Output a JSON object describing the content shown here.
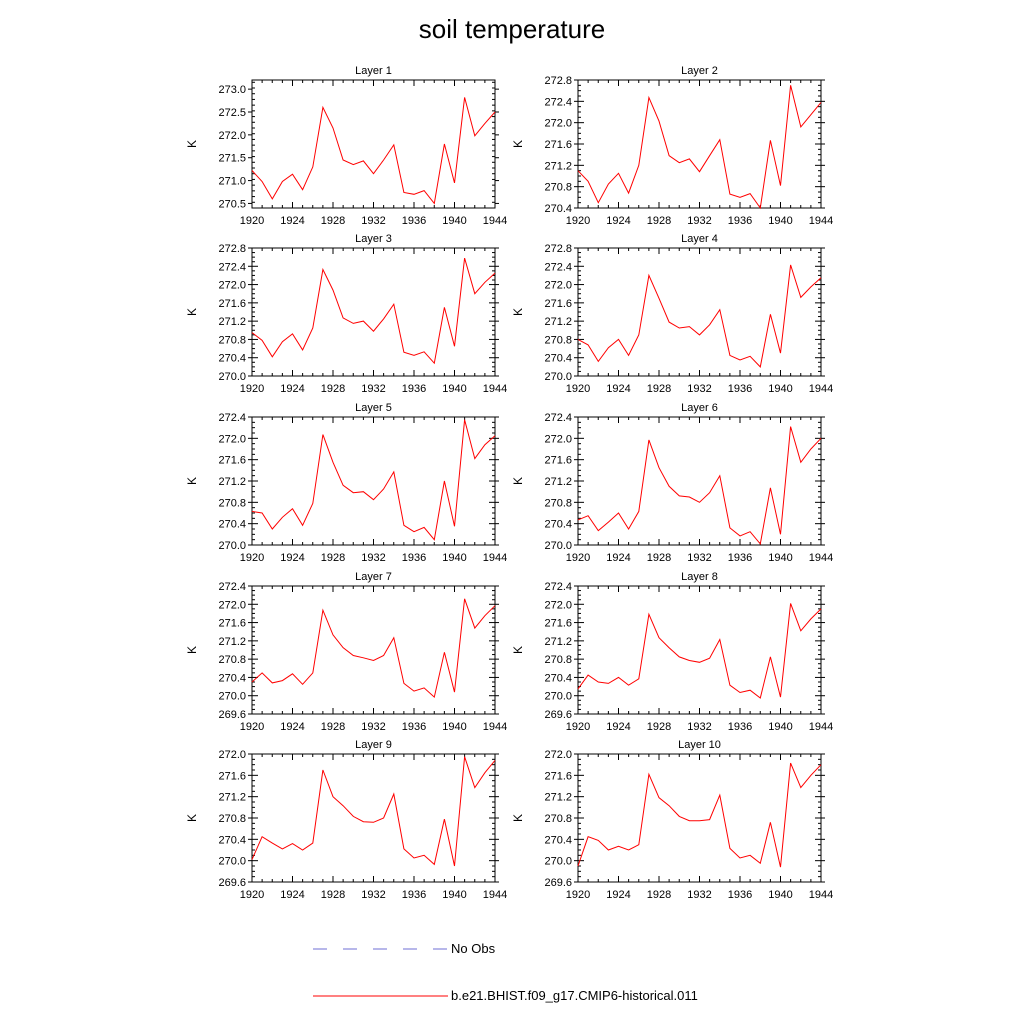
{
  "title": "soil temperature",
  "colors": {
    "model": "#ff0000",
    "obs": "#6f6fd6",
    "axis": "#000000"
  },
  "legend": {
    "obs_label": "No Obs",
    "model_label": "b.e21.BHIST.f09_g17.CMIP6-historical.011"
  },
  "chart_data": [
    {
      "type": "line",
      "title": "Layer 1",
      "ylabel": "K",
      "xlim": [
        1920,
        1944
      ],
      "ylim": [
        270.4,
        273.2
      ],
      "yticks": [
        "273.0",
        "272.5",
        "272.0",
        "271.5",
        "271.0",
        "270.5"
      ],
      "xticks": [
        "1920",
        "1924",
        "1928",
        "1932",
        "1936",
        "1940",
        "1944"
      ],
      "x": [
        1920,
        1921,
        1922,
        1923,
        1924,
        1925,
        1926,
        1927,
        1928,
        1929,
        1930,
        1931,
        1932,
        1933,
        1934,
        1935,
        1936,
        1937,
        1938,
        1939,
        1940,
        1941,
        1942,
        1943,
        1944
      ],
      "series": [
        {
          "name": "b.e21.BHIST.f09_g17.CMIP6-historical.011",
          "values": [
            271.22,
            270.98,
            270.6,
            270.98,
            271.14,
            270.8,
            271.3,
            272.6,
            272.15,
            271.45,
            271.35,
            271.43,
            271.15,
            271.45,
            271.78,
            270.74,
            270.7,
            270.78,
            270.5,
            271.8,
            270.95,
            272.82,
            271.98,
            272.25,
            272.5
          ]
        }
      ]
    },
    {
      "type": "line",
      "title": "Layer 2",
      "ylabel": "K",
      "xlim": [
        1920,
        1944
      ],
      "ylim": [
        270.4,
        272.8
      ],
      "yticks": [
        "272.8",
        "272.4",
        "272.0",
        "271.6",
        "271.2",
        "270.8",
        "270.4"
      ],
      "xticks": [
        "1920",
        "1924",
        "1928",
        "1932",
        "1936",
        "1940",
        "1944"
      ],
      "x": [
        1920,
        1921,
        1922,
        1923,
        1924,
        1925,
        1926,
        1927,
        1928,
        1929,
        1930,
        1931,
        1932,
        1933,
        1934,
        1935,
        1936,
        1937,
        1938,
        1939,
        1940,
        1941,
        1942,
        1943,
        1944
      ],
      "series": [
        {
          "name": "b.e21.BHIST.f09_g17.CMIP6-historical.011",
          "values": [
            271.1,
            270.9,
            270.5,
            270.85,
            271.05,
            270.68,
            271.2,
            272.47,
            272.03,
            271.38,
            271.25,
            271.32,
            271.08,
            271.38,
            271.68,
            270.66,
            270.6,
            270.67,
            270.4,
            271.67,
            270.82,
            272.7,
            271.92,
            272.15,
            272.38
          ]
        }
      ]
    },
    {
      "type": "line",
      "title": "Layer 3",
      "ylabel": "K",
      "xlim": [
        1920,
        1944
      ],
      "ylim": [
        270.0,
        272.8
      ],
      "yticks": [
        "272.8",
        "272.4",
        "272.0",
        "271.6",
        "271.2",
        "270.8",
        "270.4",
        "270.0"
      ],
      "xticks": [
        "1920",
        "1924",
        "1928",
        "1932",
        "1936",
        "1940",
        "1944"
      ],
      "x": [
        1920,
        1921,
        1922,
        1923,
        1924,
        1925,
        1926,
        1927,
        1928,
        1929,
        1930,
        1931,
        1932,
        1933,
        1934,
        1935,
        1936,
        1937,
        1938,
        1939,
        1940,
        1941,
        1942,
        1943,
        1944
      ],
      "series": [
        {
          "name": "b.e21.BHIST.f09_g17.CMIP6-historical.011",
          "values": [
            270.95,
            270.78,
            270.42,
            270.75,
            270.92,
            270.57,
            271.05,
            272.33,
            271.88,
            271.27,
            271.15,
            271.2,
            270.98,
            271.25,
            271.57,
            270.52,
            270.45,
            270.53,
            270.28,
            271.5,
            270.65,
            272.58,
            271.8,
            272.05,
            272.25
          ]
        }
      ]
    },
    {
      "type": "line",
      "title": "Layer 4",
      "ylabel": "K",
      "xlim": [
        1920,
        1944
      ],
      "ylim": [
        270.0,
        272.8
      ],
      "yticks": [
        "272.8",
        "272.4",
        "272.0",
        "271.6",
        "271.2",
        "270.8",
        "270.4",
        "270.0"
      ],
      "xticks": [
        "1920",
        "1924",
        "1928",
        "1932",
        "1936",
        "1940",
        "1944"
      ],
      "x": [
        1920,
        1921,
        1922,
        1923,
        1924,
        1925,
        1926,
        1927,
        1928,
        1929,
        1930,
        1931,
        1932,
        1933,
        1934,
        1935,
        1936,
        1937,
        1938,
        1939,
        1940,
        1941,
        1942,
        1943,
        1944
      ],
      "series": [
        {
          "name": "b.e21.BHIST.f09_g17.CMIP6-historical.011",
          "values": [
            270.8,
            270.68,
            270.32,
            270.62,
            270.8,
            270.45,
            270.9,
            272.2,
            271.7,
            271.18,
            271.05,
            271.08,
            270.9,
            271.12,
            271.45,
            270.45,
            270.35,
            270.43,
            270.2,
            271.35,
            270.5,
            272.43,
            271.72,
            271.95,
            272.15
          ]
        }
      ]
    },
    {
      "type": "line",
      "title": "Layer 5",
      "ylabel": "K",
      "xlim": [
        1920,
        1944
      ],
      "ylim": [
        270.0,
        272.4
      ],
      "yticks": [
        "272.4",
        "272.0",
        "271.6",
        "271.2",
        "270.8",
        "270.4",
        "270.0"
      ],
      "xticks": [
        "1920",
        "1924",
        "1928",
        "1932",
        "1936",
        "1940",
        "1944"
      ],
      "x": [
        1920,
        1921,
        1922,
        1923,
        1924,
        1925,
        1926,
        1927,
        1928,
        1929,
        1930,
        1931,
        1932,
        1933,
        1934,
        1935,
        1936,
        1937,
        1938,
        1939,
        1940,
        1941,
        1942,
        1943,
        1944
      ],
      "series": [
        {
          "name": "b.e21.BHIST.f09_g17.CMIP6-historical.011",
          "values": [
            270.63,
            270.6,
            270.3,
            270.52,
            270.68,
            270.37,
            270.78,
            272.07,
            271.55,
            271.12,
            270.98,
            271.0,
            270.85,
            271.05,
            271.37,
            270.37,
            270.25,
            270.33,
            270.1,
            271.2,
            270.35,
            272.35,
            271.62,
            271.88,
            272.05
          ]
        }
      ]
    },
    {
      "type": "line",
      "title": "Layer 6",
      "ylabel": "K",
      "xlim": [
        1920,
        1944
      ],
      "ylim": [
        270.0,
        272.4
      ],
      "yticks": [
        "272.4",
        "272.0",
        "271.6",
        "271.2",
        "270.8",
        "270.4",
        "270.0"
      ],
      "xticks": [
        "1920",
        "1924",
        "1928",
        "1932",
        "1936",
        "1940",
        "1944"
      ],
      "x": [
        1920,
        1921,
        1922,
        1923,
        1924,
        1925,
        1926,
        1927,
        1928,
        1929,
        1930,
        1931,
        1932,
        1933,
        1934,
        1935,
        1936,
        1937,
        1938,
        1939,
        1940,
        1941,
        1942,
        1943,
        1944
      ],
      "series": [
        {
          "name": "b.e21.BHIST.f09_g17.CMIP6-historical.011",
          "values": [
            270.47,
            270.55,
            270.27,
            270.43,
            270.6,
            270.3,
            270.63,
            271.97,
            271.45,
            271.1,
            270.92,
            270.9,
            270.8,
            270.98,
            271.3,
            270.32,
            270.17,
            270.25,
            270.02,
            271.07,
            270.2,
            272.22,
            271.55,
            271.8,
            272.0
          ]
        }
      ]
    },
    {
      "type": "line",
      "title": "Layer 7",
      "ylabel": "K",
      "xlim": [
        1920,
        1944
      ],
      "ylim": [
        269.6,
        272.4
      ],
      "yticks": [
        "272.4",
        "272.0",
        "271.6",
        "271.2",
        "270.8",
        "270.4",
        "270.0",
        "269.6"
      ],
      "xticks": [
        "1920",
        "1924",
        "1928",
        "1932",
        "1936",
        "1940",
        "1944"
      ],
      "x": [
        1920,
        1921,
        1922,
        1923,
        1924,
        1925,
        1926,
        1927,
        1928,
        1929,
        1930,
        1931,
        1932,
        1933,
        1934,
        1935,
        1936,
        1937,
        1938,
        1939,
        1940,
        1941,
        1942,
        1943,
        1944
      ],
      "series": [
        {
          "name": "b.e21.BHIST.f09_g17.CMIP6-historical.011",
          "values": [
            270.3,
            270.5,
            270.28,
            270.33,
            270.48,
            270.25,
            270.5,
            271.87,
            271.33,
            271.05,
            270.88,
            270.83,
            270.77,
            270.88,
            271.27,
            270.27,
            270.1,
            270.17,
            269.97,
            270.95,
            270.08,
            272.12,
            271.48,
            271.75,
            271.97
          ]
        }
      ]
    },
    {
      "type": "line",
      "title": "Layer 8",
      "ylabel": "K",
      "xlim": [
        1920,
        1944
      ],
      "ylim": [
        269.6,
        272.4
      ],
      "yticks": [
        "272.4",
        "272.0",
        "271.6",
        "271.2",
        "270.8",
        "270.4",
        "270.0",
        "269.6"
      ],
      "xticks": [
        "1920",
        "1924",
        "1928",
        "1932",
        "1936",
        "1940",
        "1944"
      ],
      "x": [
        1920,
        1921,
        1922,
        1923,
        1924,
        1925,
        1926,
        1927,
        1928,
        1929,
        1930,
        1931,
        1932,
        1933,
        1934,
        1935,
        1936,
        1937,
        1938,
        1939,
        1940,
        1941,
        1942,
        1943,
        1944
      ],
      "series": [
        {
          "name": "b.e21.BHIST.f09_g17.CMIP6-historical.011",
          "values": [
            270.15,
            270.45,
            270.3,
            270.27,
            270.4,
            270.23,
            270.37,
            271.78,
            271.27,
            271.05,
            270.85,
            270.77,
            270.73,
            270.82,
            271.23,
            270.23,
            270.07,
            270.12,
            269.95,
            270.85,
            269.97,
            272.02,
            271.42,
            271.68,
            271.9
          ]
        }
      ]
    },
    {
      "type": "line",
      "title": "Layer 9",
      "ylabel": "K",
      "xlim": [
        1920,
        1944
      ],
      "ylim": [
        269.6,
        272.0
      ],
      "yticks": [
        "272.0",
        "271.6",
        "271.2",
        "270.8",
        "270.4",
        "270.0",
        "269.6"
      ],
      "xticks": [
        "1920",
        "1924",
        "1928",
        "1932",
        "1936",
        "1940",
        "1944"
      ],
      "x": [
        1920,
        1921,
        1922,
        1923,
        1924,
        1925,
        1926,
        1927,
        1928,
        1929,
        1930,
        1931,
        1932,
        1933,
        1934,
        1935,
        1936,
        1937,
        1938,
        1939,
        1940,
        1941,
        1942,
        1943,
        1944
      ],
      "series": [
        {
          "name": "b.e21.BHIST.f09_g17.CMIP6-historical.011",
          "values": [
            270.02,
            270.45,
            270.33,
            270.22,
            270.32,
            270.2,
            270.33,
            271.7,
            271.2,
            271.03,
            270.83,
            270.73,
            270.72,
            270.8,
            271.25,
            270.22,
            270.05,
            270.1,
            269.93,
            270.78,
            269.9,
            271.95,
            271.37,
            271.65,
            271.88
          ]
        }
      ]
    },
    {
      "type": "line",
      "title": "Layer 10",
      "ylabel": "K",
      "xlim": [
        1920,
        1944
      ],
      "ylim": [
        269.6,
        272.0
      ],
      "yticks": [
        "272.0",
        "271.6",
        "271.2",
        "270.8",
        "270.4",
        "270.0",
        "269.6"
      ],
      "xticks": [
        "1920",
        "1924",
        "1928",
        "1932",
        "1936",
        "1940",
        "1944"
      ],
      "x": [
        1920,
        1921,
        1922,
        1923,
        1924,
        1925,
        1926,
        1927,
        1928,
        1929,
        1930,
        1931,
        1932,
        1933,
        1934,
        1935,
        1936,
        1937,
        1938,
        1939,
        1940,
        1941,
        1942,
        1943,
        1944
      ],
      "series": [
        {
          "name": "b.e21.BHIST.f09_g17.CMIP6-historical.011",
          "values": [
            269.9,
            270.45,
            270.38,
            270.2,
            270.27,
            270.2,
            270.3,
            271.62,
            271.18,
            271.03,
            270.83,
            270.75,
            270.75,
            270.77,
            271.23,
            270.23,
            270.05,
            270.1,
            269.95,
            270.72,
            269.88,
            271.83,
            271.37,
            271.6,
            271.8
          ]
        }
      ]
    }
  ]
}
